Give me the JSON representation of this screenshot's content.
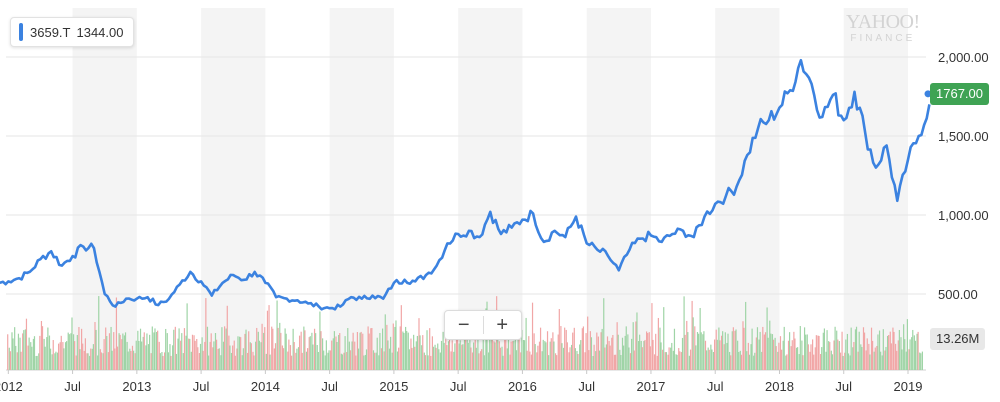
{
  "legend": {
    "ticker": "3659.T",
    "value": "1344.00",
    "color": "#3b82e0"
  },
  "watermark": {
    "line1": "YAHOO!",
    "line2": "FINANCE"
  },
  "zoom": {
    "minus": "−",
    "plus": "+"
  },
  "badges": {
    "price": {
      "text": "1767.00",
      "bg": "#3fa354",
      "fg": "#ffffff"
    },
    "volume": {
      "text": "13.26M",
      "bg": "#e8e8e8",
      "fg": "#333333"
    }
  },
  "colors": {
    "line": "#3b82e0",
    "vol_up": "#9fd4a6",
    "vol_down": "#f1a6a6",
    "band": "#f4f4f4",
    "grid": "#e6e6e6"
  },
  "chart_data": {
    "type": "line",
    "title": "",
    "xlabel": "",
    "ylabel": "",
    "ylim": [
      300,
      2150
    ],
    "y_ticks": [
      500,
      1000,
      1500,
      2000
    ],
    "y_tick_labels": [
      "500.00",
      "1,000.00",
      "1,500.00",
      "2,000.00"
    ],
    "x_ticks": [
      {
        "t": "2012-01",
        "label": "2012"
      },
      {
        "t": "2012-07",
        "label": "Jul"
      },
      {
        "t": "2013-01",
        "label": "2013"
      },
      {
        "t": "2013-07",
        "label": "Jul"
      },
      {
        "t": "2014-01",
        "label": "2014"
      },
      {
        "t": "2014-07",
        "label": "Jul"
      },
      {
        "t": "2015-01",
        "label": "2015"
      },
      {
        "t": "2015-07",
        "label": "Jul"
      },
      {
        "t": "2016-01",
        "label": "2016"
      },
      {
        "t": "2016-07",
        "label": "Jul"
      },
      {
        "t": "2017-01",
        "label": "2017"
      },
      {
        "t": "2017-07",
        "label": "Jul"
      },
      {
        "t": "2018-01",
        "label": "2018"
      },
      {
        "t": "2018-07",
        "label": "Jul"
      },
      {
        "t": "2019-01",
        "label": "2019"
      }
    ],
    "x_range": [
      "2011-12",
      "2019-03"
    ],
    "last_value": 1767,
    "series": [
      {
        "name": "3659.T",
        "points": [
          [
            "2011-12",
            570
          ],
          [
            "2012-01",
            580
          ],
          [
            "2012-02",
            600
          ],
          [
            "2012-03",
            640
          ],
          [
            "2012-04",
            720
          ],
          [
            "2012-05",
            770
          ],
          [
            "2012-06",
            680
          ],
          [
            "2012-07",
            740
          ],
          [
            "2012-08",
            800
          ],
          [
            "2012-09",
            790
          ],
          [
            "2012-10",
            500
          ],
          [
            "2012-11",
            420
          ],
          [
            "2012-12",
            470
          ],
          [
            "2013-01",
            470
          ],
          [
            "2013-02",
            480
          ],
          [
            "2013-03",
            430
          ],
          [
            "2013-04",
            470
          ],
          [
            "2013-05",
            560
          ],
          [
            "2013-06",
            640
          ],
          [
            "2013-07",
            580
          ],
          [
            "2013-08",
            490
          ],
          [
            "2013-09",
            570
          ],
          [
            "2013-10",
            620
          ],
          [
            "2013-11",
            590
          ],
          [
            "2013-12",
            640
          ],
          [
            "2014-01",
            570
          ],
          [
            "2014-02",
            480
          ],
          [
            "2014-03",
            470
          ],
          [
            "2014-04",
            460
          ],
          [
            "2014-05",
            440
          ],
          [
            "2014-06",
            420
          ],
          [
            "2014-07",
            410
          ],
          [
            "2014-08",
            420
          ],
          [
            "2014-09",
            480
          ],
          [
            "2014-10",
            470
          ],
          [
            "2014-11",
            490
          ],
          [
            "2014-12",
            470
          ],
          [
            "2015-01",
            570
          ],
          [
            "2015-02",
            590
          ],
          [
            "2015-03",
            580
          ],
          [
            "2015-04",
            620
          ],
          [
            "2015-05",
            680
          ],
          [
            "2015-06",
            820
          ],
          [
            "2015-07",
            880
          ],
          [
            "2015-08",
            900
          ],
          [
            "2015-09",
            860
          ],
          [
            "2015-10",
            1020
          ],
          [
            "2015-11",
            880
          ],
          [
            "2015-12",
            920
          ],
          [
            "2016-01",
            970
          ],
          [
            "2016-02",
            1010
          ],
          [
            "2016-03",
            830
          ],
          [
            "2016-04",
            900
          ],
          [
            "2016-05",
            860
          ],
          [
            "2016-06",
            990
          ],
          [
            "2016-07",
            820
          ],
          [
            "2016-08",
            780
          ],
          [
            "2016-09",
            740
          ],
          [
            "2016-10",
            650
          ],
          [
            "2016-11",
            780
          ],
          [
            "2016-12",
            850
          ],
          [
            "2017-01",
            870
          ],
          [
            "2017-02",
            830
          ],
          [
            "2017-03",
            880
          ],
          [
            "2017-04",
            900
          ],
          [
            "2017-05",
            860
          ],
          [
            "2017-06",
            990
          ],
          [
            "2017-07",
            1070
          ],
          [
            "2017-08",
            1120
          ],
          [
            "2017-09",
            1180
          ],
          [
            "2017-10",
            1380
          ],
          [
            "2017-11",
            1550
          ],
          [
            "2017-12",
            1600
          ],
          [
            "2018-01",
            1680
          ],
          [
            "2018-02",
            1790
          ],
          [
            "2018-03",
            1980
          ],
          [
            "2018-04",
            1830
          ],
          [
            "2018-05",
            1620
          ],
          [
            "2018-06",
            1760
          ],
          [
            "2018-07",
            1600
          ],
          [
            "2018-08",
            1780
          ],
          [
            "2018-09",
            1520
          ],
          [
            "2018-10",
            1300
          ],
          [
            "2018-11",
            1440
          ],
          [
            "2018-12",
            1090
          ],
          [
            "2019-01",
            1350
          ],
          [
            "2019-02",
            1500
          ],
          [
            "2019-03",
            1700
          ]
        ]
      }
    ]
  }
}
